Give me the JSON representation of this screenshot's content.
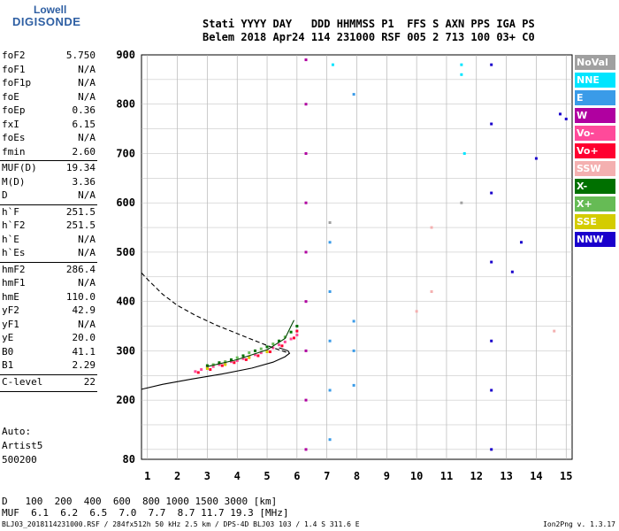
{
  "logo": {
    "line1": "Lowell",
    "line2": "DIGISONDE"
  },
  "header": {
    "row1": "Stati YYYY DAY   DDD HHMMSS P1  FFS S AXN PPS IGA PS",
    "row2": "Belem 2018 Apr24 114 231000 RSF 005 2 713 100 03+ C0"
  },
  "params": [
    {
      "k": "foF2",
      "v": "5.750"
    },
    {
      "k": "foF1",
      "v": "N/A"
    },
    {
      "k": "foF1p",
      "v": "N/A"
    },
    {
      "k": "foE",
      "v": "N/A"
    },
    {
      "k": "foEp",
      "v": "0.36"
    },
    {
      "k": "fxI",
      "v": "6.15"
    },
    {
      "k": "foEs",
      "v": "N/A"
    },
    {
      "k": "fmin",
      "v": "2.60"
    },
    {
      "k": "MUF(D)",
      "v": "19.34"
    },
    {
      "k": "M(D)",
      "v": "3.36"
    },
    {
      "k": "D",
      "v": "N/A"
    },
    {
      "k": "h`F",
      "v": "251.5"
    },
    {
      "k": "h`F2",
      "v": "251.5"
    },
    {
      "k": "h`E",
      "v": "N/A"
    },
    {
      "k": "h`Es",
      "v": "N/A"
    },
    {
      "k": "hmF2",
      "v": "286.4"
    },
    {
      "k": "hmF1",
      "v": "N/A"
    },
    {
      "k": "hmE",
      "v": "110.0"
    },
    {
      "k": "yF2",
      "v": "42.9"
    },
    {
      "k": "yF1",
      "v": "N/A"
    },
    {
      "k": "yE",
      "v": "20.0"
    },
    {
      "k": "B0",
      "v": "41.1"
    },
    {
      "k": "B1",
      "v": "2.29"
    },
    {
      "k": "C-level",
      "v": "22"
    }
  ],
  "auto": {
    "l1": "Auto:",
    "l2": "Artist5",
    "l3": "500200"
  },
  "legend": [
    {
      "label": "NoVal",
      "color": "#a0a0a0"
    },
    {
      "label": "NNE",
      "color": "#00e5ff"
    },
    {
      "label": "E",
      "color": "#3a9be8"
    },
    {
      "label": "W",
      "color": "#b000a0"
    },
    {
      "label": "Vo-",
      "color": "#ff4a9a"
    },
    {
      "label": "Vo+",
      "color": "#ff0030"
    },
    {
      "label": "SSW",
      "color": "#f4b0b0"
    },
    {
      "label": "X-",
      "color": "#007000"
    },
    {
      "label": "X+",
      "color": "#66bb55"
    },
    {
      "label": "SSE",
      "color": "#d4cc00"
    },
    {
      "label": "NNW",
      "color": "#1a00cc"
    }
  ],
  "bottom": {
    "d_row": "D   100  200  400  600  800 1000 1500 3000 [km]",
    "muf_row": "MUF  6.1  6.2  6.5  7.0  7.7  8.7 11.7 19.3 [MHz]"
  },
  "footer": {
    "left": "BLJ03_2018114231000.RSF / 284fx512h 50 kHz 2.5 km / DPS-4D BLJ03 103 / 1.4 S 311.6 E",
    "right": "Ion2Png v. 1.3.17"
  },
  "chart_data": {
    "type": "scatter",
    "xlim": [
      0.8,
      15.2
    ],
    "ylim": [
      80,
      900
    ],
    "x_ticks": [
      1,
      2,
      3,
      4,
      5,
      6,
      7,
      8,
      9,
      10,
      11,
      12,
      13,
      14,
      15
    ],
    "y_ticks": [
      80,
      200,
      300,
      400,
      500,
      600,
      700,
      800,
      900
    ],
    "grid": true,
    "series": [
      {
        "name": "Vo-",
        "color": "#ff4a9a",
        "points": [
          [
            2.6,
            258
          ],
          [
            2.8,
            262
          ],
          [
            3.0,
            266
          ],
          [
            3.2,
            268
          ],
          [
            3.4,
            272
          ],
          [
            3.6,
            274
          ],
          [
            3.8,
            278
          ],
          [
            4.0,
            280
          ],
          [
            4.2,
            284
          ],
          [
            4.4,
            288
          ],
          [
            4.6,
            292
          ],
          [
            4.8,
            296
          ],
          [
            5.0,
            300
          ],
          [
            5.2,
            306
          ],
          [
            5.4,
            312
          ],
          [
            5.6,
            318
          ],
          [
            5.8,
            324
          ],
          [
            6.0,
            332
          ]
        ]
      },
      {
        "name": "Vo+",
        "color": "#ff0030",
        "points": [
          [
            2.7,
            256
          ],
          [
            3.1,
            262
          ],
          [
            3.5,
            270
          ],
          [
            3.9,
            276
          ],
          [
            4.3,
            282
          ],
          [
            4.7,
            290
          ],
          [
            5.1,
            298
          ],
          [
            5.5,
            310
          ],
          [
            5.9,
            326
          ],
          [
            6.0,
            340
          ]
        ]
      },
      {
        "name": "X-",
        "color": "#007000",
        "points": [
          [
            3.0,
            270
          ],
          [
            3.4,
            276
          ],
          [
            3.8,
            282
          ],
          [
            4.2,
            290
          ],
          [
            4.6,
            300
          ],
          [
            5.0,
            308
          ],
          [
            5.4,
            320
          ],
          [
            5.8,
            338
          ],
          [
            6.0,
            350
          ]
        ]
      },
      {
        "name": "X+",
        "color": "#66bb55",
        "points": [
          [
            3.2,
            272
          ],
          [
            3.6,
            278
          ],
          [
            4.0,
            286
          ],
          [
            4.4,
            296
          ],
          [
            4.8,
            304
          ],
          [
            5.2,
            314
          ],
          [
            5.6,
            328
          ]
        ]
      },
      {
        "name": "SSE",
        "color": "#d4cc00",
        "points": [
          [
            3.0,
            264
          ],
          [
            3.6,
            272
          ],
          [
            4.4,
            286
          ],
          [
            5.0,
            298
          ]
        ]
      },
      {
        "name": "W",
        "color": "#b000a0",
        "points": [
          [
            6.3,
            100
          ],
          [
            6.3,
            200
          ],
          [
            6.3,
            300
          ],
          [
            6.3,
            400
          ],
          [
            6.3,
            500
          ],
          [
            6.3,
            600
          ],
          [
            6.3,
            700
          ],
          [
            6.3,
            800
          ],
          [
            6.3,
            890
          ]
        ]
      },
      {
        "name": "E",
        "color": "#3a9be8",
        "points": [
          [
            7.1,
            120
          ],
          [
            7.1,
            220
          ],
          [
            7.1,
            320
          ],
          [
            7.1,
            420
          ],
          [
            7.1,
            520
          ],
          [
            7.9,
            230
          ],
          [
            7.9,
            300
          ],
          [
            7.9,
            360
          ],
          [
            7.9,
            820
          ]
        ]
      },
      {
        "name": "NNE",
        "color": "#00e5ff",
        "points": [
          [
            7.2,
            880
          ],
          [
            11.5,
            880
          ],
          [
            11.5,
            860
          ],
          [
            11.6,
            700
          ]
        ]
      },
      {
        "name": "NNW",
        "color": "#1a00cc",
        "points": [
          [
            12.5,
            100
          ],
          [
            12.5,
            220
          ],
          [
            12.5,
            320
          ],
          [
            12.5,
            480
          ],
          [
            12.5,
            620
          ],
          [
            12.5,
            760
          ],
          [
            12.5,
            880
          ],
          [
            13.2,
            460
          ],
          [
            13.5,
            520
          ],
          [
            14.0,
            690
          ],
          [
            14.8,
            780
          ],
          [
            15.0,
            770
          ]
        ]
      },
      {
        "name": "SSW",
        "color": "#f4b0b0",
        "points": [
          [
            10.5,
            550
          ],
          [
            10.5,
            420
          ],
          [
            10.0,
            380
          ],
          [
            14.6,
            340
          ]
        ]
      },
      {
        "name": "NoVal",
        "color": "#a0a0a0",
        "points": [
          [
            7.1,
            560
          ],
          [
            11.5,
            600
          ]
        ]
      }
    ],
    "lines": [
      {
        "name": "profile-solid",
        "style": "solid",
        "points": [
          [
            0.8,
            222
          ],
          [
            1.5,
            232
          ],
          [
            2.5,
            243
          ],
          [
            3.5,
            253
          ],
          [
            4.5,
            265
          ],
          [
            5.2,
            277
          ],
          [
            5.6,
            288
          ],
          [
            5.75,
            295
          ],
          [
            5.7,
            300
          ],
          [
            5.4,
            306
          ]
        ]
      },
      {
        "name": "profile-dashed",
        "style": "dashed",
        "points": [
          [
            0.8,
            458
          ],
          [
            1.0,
            445
          ],
          [
            1.5,
            415
          ],
          [
            2.0,
            392
          ],
          [
            2.6,
            372
          ],
          [
            3.3,
            352
          ],
          [
            4.0,
            335
          ],
          [
            4.7,
            318
          ],
          [
            5.2,
            306
          ],
          [
            5.75,
            295
          ]
        ]
      },
      {
        "name": "trace-green",
        "style": "solid",
        "points": [
          [
            3.0,
            268
          ],
          [
            4.0,
            282
          ],
          [
            5.0,
            302
          ],
          [
            5.6,
            325
          ],
          [
            5.8,
            350
          ],
          [
            5.9,
            362
          ]
        ]
      }
    ]
  }
}
